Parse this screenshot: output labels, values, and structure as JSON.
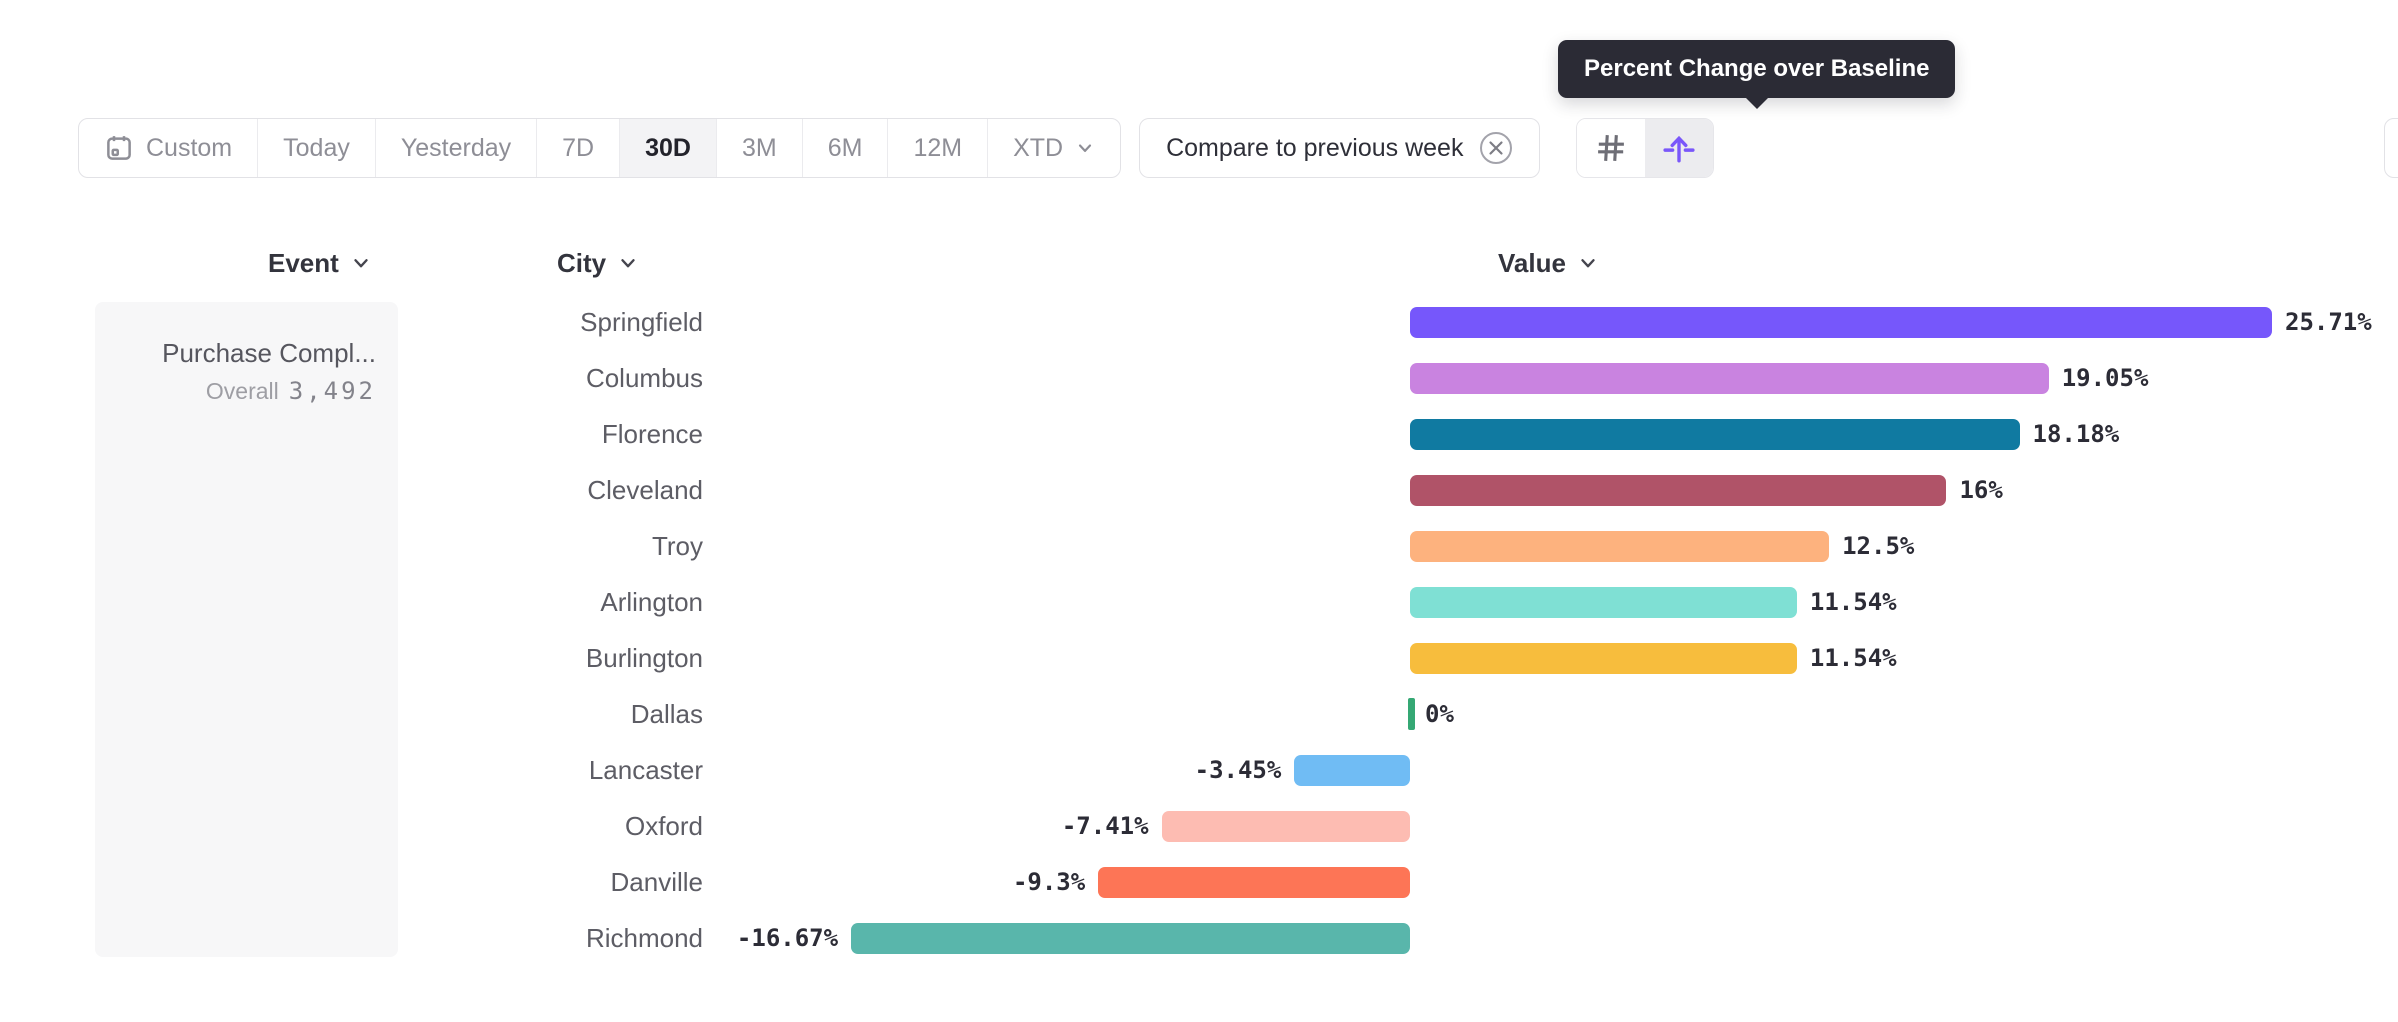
{
  "tooltip": {
    "text": "Percent Change over Baseline"
  },
  "toolbar": {
    "date_ranges": [
      {
        "label": "Custom",
        "icon": "calendar",
        "selected": false
      },
      {
        "label": "Today",
        "selected": false
      },
      {
        "label": "Yesterday",
        "selected": false
      },
      {
        "label": "7D",
        "selected": false
      },
      {
        "label": "30D",
        "selected": true
      },
      {
        "label": "3M",
        "selected": false
      },
      {
        "label": "6M",
        "selected": false
      },
      {
        "label": "12M",
        "selected": false
      },
      {
        "label": "XTD",
        "icon_right": "chevron-down",
        "selected": false
      }
    ],
    "compare": {
      "label": "Compare to previous week",
      "remove_icon": "close-circle-icon"
    },
    "view_toggle": [
      {
        "name": "grid-view",
        "icon": "hash-grid-icon",
        "selected": false
      },
      {
        "name": "baseline-view",
        "icon": "arrow-up-baseline-icon",
        "selected": true,
        "accent": "#7a57fa"
      }
    ]
  },
  "table": {
    "columns": [
      {
        "label": "Event"
      },
      {
        "label": "City"
      },
      {
        "label": "Value"
      }
    ],
    "event": {
      "name": "Purchase Compl...",
      "overall_label": "Overall",
      "overall_value": "3,492"
    }
  },
  "chart_data": {
    "type": "bar",
    "orientation": "horizontal",
    "title": "Percent Change over Baseline",
    "series_name": "Value",
    "event": "Purchase Compl...",
    "event_overall_total": 3492,
    "categories": [
      "Springfield",
      "Columbus",
      "Florence",
      "Cleveland",
      "Troy",
      "Arlington",
      "Burlington",
      "Dallas",
      "Lancaster",
      "Oxford",
      "Danville",
      "Richmond"
    ],
    "values": [
      25.71,
      19.05,
      18.18,
      16,
      12.5,
      11.54,
      11.54,
      0,
      -3.45,
      -7.41,
      -9.3,
      -16.67
    ],
    "value_labels": [
      "25.71%",
      "19.05%",
      "18.18%",
      "16%",
      "12.5%",
      "11.54%",
      "11.54%",
      "0%",
      "-3.45%",
      "-7.41%",
      "-9.3%",
      "-16.67%"
    ],
    "colors": [
      "#7657fb",
      "#c983e0",
      "#107aa1",
      "#b05368",
      "#fdb27e",
      "#7fe0d4",
      "#f7bd3d",
      "#35a874",
      "#70bcf4",
      "#fdbcb2",
      "#fd7556",
      "#59b6ab"
    ],
    "zero_marker_color": "#35a874",
    "xlim": [
      -17,
      26
    ],
    "grid": false,
    "legend": "none",
    "baseline": 0
  }
}
